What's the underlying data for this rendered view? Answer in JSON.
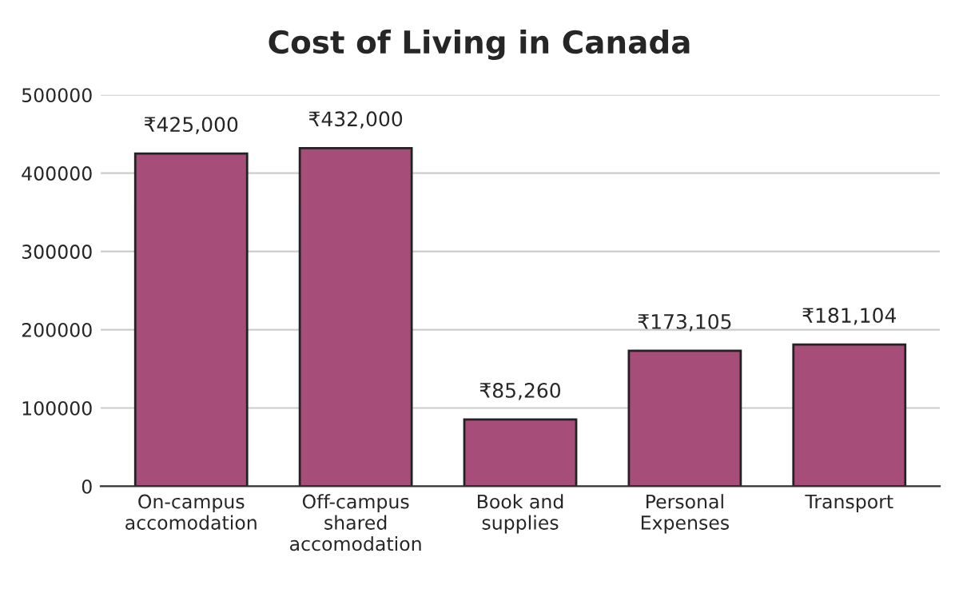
{
  "chart_data": {
    "type": "bar",
    "title": "Cost of Living in Canada",
    "categories": [
      "On-campus\naccomodation",
      "Off-campus\nshared\naccomodation",
      "Book and\nsupplies",
      "Personal\nExpenses",
      "Transport"
    ],
    "values": [
      425000,
      432000,
      85260,
      173105,
      181104
    ],
    "value_labels": [
      "₹425,000",
      "₹432,000",
      "₹85,260",
      "₹173,105",
      "₹181,104"
    ],
    "color": "#a64d79",
    "ylim": [
      0,
      500000
    ],
    "yticks": [
      0,
      100000,
      200000,
      300000,
      400000,
      500000
    ],
    "grid": "y"
  }
}
